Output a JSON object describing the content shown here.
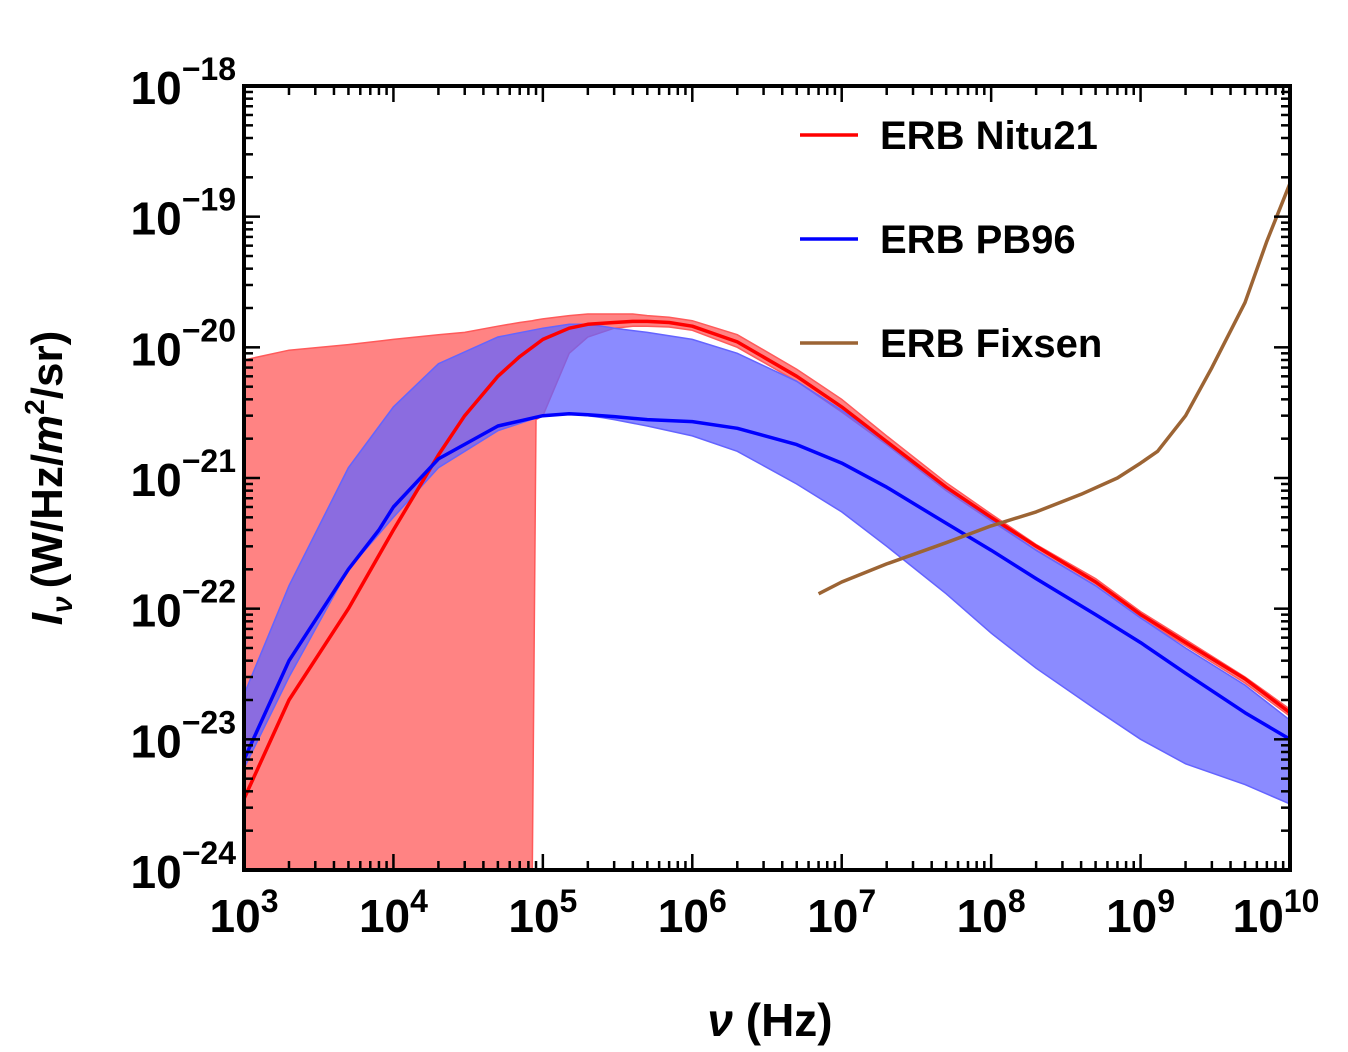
{
  "chart_data": {
    "type": "line",
    "xscale": "log",
    "yscale": "log",
    "xlim": [
      1000,
      10000000000
    ],
    "ylim": [
      1e-24,
      1e-18
    ],
    "x_tick_labels": [
      {
        "base": "10",
        "exp": "3"
      },
      {
        "base": "10",
        "exp": "4"
      },
      {
        "base": "10",
        "exp": "5"
      },
      {
        "base": "10",
        "exp": "6"
      },
      {
        "base": "10",
        "exp": "7"
      },
      {
        "base": "10",
        "exp": "8"
      },
      {
        "base": "10",
        "exp": "9"
      },
      {
        "base": "10",
        "exp": "10"
      }
    ],
    "y_tick_labels": [
      {
        "base": "10",
        "exp": "−24"
      },
      {
        "base": "10",
        "exp": "−23"
      },
      {
        "base": "10",
        "exp": "−22"
      },
      {
        "base": "10",
        "exp": "−21"
      },
      {
        "base": "10",
        "exp": "−20"
      },
      {
        "base": "10",
        "exp": "−19"
      },
      {
        "base": "10",
        "exp": "−18"
      }
    ],
    "xlabel": {
      "symbol": "ν",
      "unit": "(Hz)"
    },
    "ylabel": {
      "symbol": "I",
      "subscript": "ν",
      "unit_a": "(W/Hz/",
      "unit_m": "m",
      "unit_sup": "2",
      "unit_b": "/sr)"
    },
    "legend_position": "top-right",
    "grid": false,
    "series": [
      {
        "name": "ERB Nitu21",
        "color": "#ff0000",
        "band_color": "#ff5a5a",
        "x": [
          1000,
          2000,
          5000,
          10000,
          20000,
          30000,
          50000,
          70000,
          100000,
          150000,
          200000,
          300000,
          400000,
          500000,
          700000,
          1000000,
          2000000,
          5000000,
          10000000,
          20000000,
          50000000,
          100000000,
          200000000,
          500000000,
          1000000000,
          2000000000,
          5000000000,
          10000000000
        ],
        "y": [
          3.5e-24,
          2e-23,
          1e-22,
          4e-22,
          1.5e-21,
          3e-21,
          6e-21,
          8.5e-21,
          1.15e-20,
          1.4e-20,
          1.5e-20,
          1.55e-20,
          1.58e-20,
          1.58e-20,
          1.55e-20,
          1.45e-20,
          1.1e-20,
          6e-21,
          3.5e-21,
          1.9e-21,
          8.5e-22,
          5e-22,
          3e-22,
          1.6e-22,
          9e-23,
          5.5e-23,
          2.9e-23,
          1.6e-23
        ],
        "band_x": [
          1000,
          2000,
          5000,
          10000,
          20000,
          30000,
          50000,
          70000,
          85000,
          90000,
          100000,
          150000,
          200000,
          300000,
          400000,
          500000,
          700000,
          1000000,
          2000000,
          5000000,
          10000000,
          20000000,
          50000000,
          100000000,
          200000000,
          500000000,
          1000000000,
          2000000000,
          5000000000,
          10000000000
        ],
        "band_upper": [
          8e-21,
          9.5e-21,
          1.05e-20,
          1.15e-20,
          1.25e-20,
          1.3e-20,
          1.45e-20,
          1.55e-20,
          1.6e-20,
          1.62e-20,
          1.65e-20,
          1.75e-20,
          1.8e-20,
          1.8e-20,
          1.8e-20,
          1.75e-20,
          1.7e-20,
          1.6e-20,
          1.25e-20,
          6.8e-21,
          4e-21,
          2.1e-21,
          9.2e-22,
          5.3e-22,
          3.1e-22,
          1.7e-22,
          9.5e-23,
          5.8e-23,
          3e-23,
          1.7e-23
        ],
        "band_lower": [
          1e-24,
          1e-24,
          1e-24,
          1e-24,
          1e-24,
          1e-24,
          1e-24,
          1e-24,
          1e-24,
          2.8e-21,
          3e-21,
          9e-21,
          1.2e-20,
          1.4e-20,
          1.45e-20,
          1.45e-20,
          1.43e-20,
          1.35e-20,
          1e-20,
          5.5e-21,
          3.2e-21,
          1.8e-21,
          8e-22,
          4.7e-22,
          2.8e-22,
          1.5e-22,
          8.5e-23,
          5.2e-23,
          2.7e-23,
          1.5e-23
        ]
      },
      {
        "name": "ERB PB96",
        "color": "#0000ff",
        "band_color": "#6464ff",
        "x": [
          1000,
          2000,
          5000,
          8000,
          10000,
          20000,
          50000,
          100000,
          150000,
          200000,
          300000,
          500000,
          1000000,
          2000000,
          5000000,
          10000000,
          20000000,
          50000000,
          100000000,
          200000000,
          500000000,
          1000000000,
          2000000000,
          5000000000,
          10000000000
        ],
        "y": [
          7e-24,
          4e-23,
          2e-22,
          4e-22,
          6e-22,
          1.4e-21,
          2.5e-21,
          3e-21,
          3.1e-21,
          3.05e-21,
          2.95e-21,
          2.8e-21,
          2.7e-21,
          2.4e-21,
          1.8e-21,
          1.3e-21,
          8.5e-22,
          4.5e-22,
          2.8e-22,
          1.7e-22,
          9e-23,
          5.5e-23,
          3.2e-23,
          1.6e-23,
          1e-23
        ],
        "band_x": [
          1000,
          2000,
          5000,
          10000,
          20000,
          50000,
          100000,
          150000,
          200000,
          250000,
          300000,
          500000,
          1000000,
          2000000,
          5000000,
          10000000,
          20000000,
          50000000,
          100000000,
          200000000,
          500000000,
          1000000000,
          2000000000,
          5000000000,
          10000000000
        ],
        "band_upper": [
          2.2e-23,
          1.5e-22,
          1.2e-21,
          3.5e-21,
          7.5e-21,
          1.2e-20,
          1.4e-20,
          1.5e-20,
          1.5e-20,
          1.45e-20,
          1.4e-20,
          1.3e-20,
          1.15e-20,
          9e-21,
          5.5e-21,
          3.3e-21,
          1.9e-21,
          8.5e-22,
          4.8e-22,
          2.8e-22,
          1.5e-22,
          8.5e-23,
          5e-23,
          2.6e-23,
          1.4e-23
        ],
        "band_lower": [
          6e-24,
          3e-23,
          2e-22,
          5e-22,
          1.2e-21,
          2.3e-21,
          3e-21,
          3.1e-21,
          3e-21,
          2.9e-21,
          2.8e-21,
          2.5e-21,
          2.1e-21,
          1.6e-21,
          9e-22,
          5.5e-22,
          3e-22,
          1.3e-22,
          6.5e-23,
          3.5e-23,
          1.7e-23,
          1e-23,
          6.5e-24,
          4.5e-24,
          3.2e-24
        ]
      },
      {
        "name": "ERB Fixsen",
        "color": "#9c6434",
        "x": [
          7000000,
          10000000,
          20000000,
          50000000,
          100000000,
          200000000,
          400000000,
          700000000,
          1000000000,
          1300000000,
          2000000000,
          3000000000,
          5000000000,
          7000000000,
          10000000000
        ],
        "y": [
          1.3e-22,
          1.6e-22,
          2.2e-22,
          3.2e-22,
          4.3e-22,
          5.5e-22,
          7.5e-22,
          1e-21,
          1.3e-21,
          1.6e-21,
          3e-21,
          7e-21,
          2.2e-20,
          6.5e-20,
          1.8e-19
        ]
      }
    ]
  }
}
